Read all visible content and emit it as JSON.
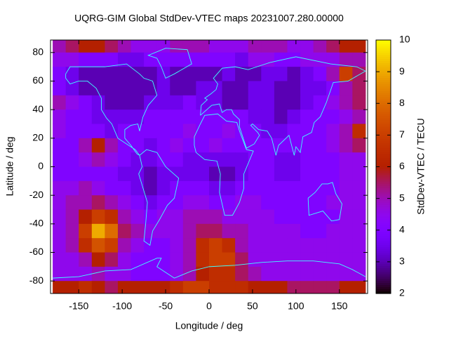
{
  "chart_data": {
    "type": "heatmap",
    "title": "UQRG-GIM Global StdDev-VTEC maps 20231007.280.00000",
    "x_label": "Longitude / deg",
    "y_label": "Latitude / deg",
    "colorbar_label": "StdDev-VTEC / TECU",
    "palette": "rgbformulae 7,5,15",
    "xlim": [
      -182.5,
      182.5
    ],
    "ylim": [
      -88.75,
      88.75
    ],
    "zlim": [
      2,
      10
    ],
    "xticks": [
      -150,
      -100,
      -50,
      0,
      50,
      100,
      150
    ],
    "yticks": [
      -80,
      -60,
      -40,
      -20,
      0,
      20,
      40,
      60,
      80
    ],
    "zticks": [
      2,
      3,
      4,
      5,
      6,
      7,
      8,
      9,
      10
    ],
    "x": [
      -172.5,
      -157.5,
      -142.5,
      -127.5,
      -112.5,
      -97.5,
      -82.5,
      -67.5,
      -52.5,
      -37.5,
      -22.5,
      -7.5,
      7.5,
      22.5,
      37.5,
      52.5,
      67.5,
      82.5,
      97.5,
      112.5,
      127.5,
      142.5,
      157.5,
      172.5
    ],
    "y": [
      85,
      75,
      65,
      55,
      45,
      35,
      25,
      15,
      5,
      -5,
      -15,
      -25,
      -35,
      -45,
      -55,
      -65,
      -75,
      -85
    ],
    "z": [
      [
        5,
        5.5,
        6,
        6,
        5.5,
        5,
        4.5,
        4.5,
        4.5,
        5,
        5,
        5,
        4.5,
        4.5,
        4.5,
        5,
        5,
        5,
        4.5,
        4.5,
        5,
        5.5,
        6,
        6
      ],
      [
        4.5,
        4.5,
        4,
        4,
        4,
        3.5,
        3.5,
        4,
        4,
        4,
        4,
        4,
        4,
        4,
        3.5,
        4.5,
        4.5,
        4,
        4,
        4.5,
        4.5,
        4.5,
        5,
        5
      ],
      [
        4,
        3.5,
        3,
        3,
        3,
        3,
        3,
        3,
        3.5,
        3,
        3,
        3,
        3,
        3.5,
        3,
        3,
        3.5,
        3.5,
        3,
        3.5,
        4,
        5,
        7,
        5.5
      ],
      [
        4,
        3.5,
        3,
        3,
        3,
        3,
        3,
        3,
        3.5,
        3,
        3,
        3.5,
        3.5,
        3,
        3,
        3.5,
        3.5,
        3,
        3,
        3.5,
        3.5,
        4,
        5,
        5.5
      ],
      [
        5,
        4.5,
        4,
        3.5,
        3,
        3,
        3,
        3.5,
        3.5,
        3.5,
        4,
        3.5,
        3.5,
        3,
        3,
        3.5,
        3.5,
        3,
        3,
        3.5,
        4,
        4.5,
        5,
        5.5
      ],
      [
        4.5,
        4,
        4,
        3.5,
        3.5,
        3.5,
        3.5,
        4,
        4,
        4,
        4,
        4,
        4,
        4,
        4,
        3.5,
        3.5,
        3,
        3.5,
        4,
        4,
        4,
        4.5,
        5
      ],
      [
        4.5,
        4,
        4,
        4,
        3.5,
        4,
        4,
        4,
        4,
        4,
        4.5,
        4,
        4,
        4.5,
        4,
        4,
        3.5,
        3.5,
        4,
        4,
        4,
        4.5,
        5,
        6.5
      ],
      [
        4,
        4,
        5,
        6,
        5,
        4,
        4,
        3.5,
        4,
        4.5,
        4,
        4,
        4.5,
        4,
        4,
        4,
        4,
        4,
        4,
        4,
        4,
        4.5,
        5,
        5.5
      ],
      [
        4,
        4,
        4.5,
        5,
        4.5,
        4,
        3.5,
        3.5,
        4,
        4,
        3.5,
        3.5,
        3.5,
        3.5,
        3.5,
        4,
        4,
        3.5,
        3.5,
        4,
        4,
        4,
        4.5,
        4.5
      ],
      [
        4,
        4,
        4,
        4,
        4,
        3.5,
        3.5,
        3,
        3.5,
        3.5,
        3.5,
        3.5,
        3,
        3,
        3.5,
        4,
        4,
        3.5,
        3.5,
        4,
        4,
        4,
        4.5,
        4.5
      ],
      [
        4.5,
        4.5,
        5,
        4.5,
        4,
        4,
        3.5,
        3,
        3.5,
        4,
        4,
        4,
        3.5,
        3.5,
        4,
        4,
        4,
        4,
        4,
        4,
        4,
        4,
        4.5,
        4.5
      ],
      [
        4.5,
        5,
        5,
        5.5,
        5,
        4.5,
        4,
        3.5,
        4,
        4,
        4.5,
        4.5,
        4,
        4,
        4.5,
        4.5,
        4,
        4,
        4,
        4,
        4,
        4.5,
        4.5,
        4.5
      ],
      [
        4.5,
        5,
        6,
        7,
        6.5,
        5,
        4.5,
        4,
        4.5,
        4.5,
        5,
        5,
        5,
        4.5,
        4.5,
        4.5,
        4.5,
        4,
        4,
        4,
        4,
        4,
        4.5,
        4.5
      ],
      [
        4.5,
        5,
        7,
        9,
        8,
        5.5,
        5,
        4.5,
        4.5,
        4.5,
        5,
        5.5,
        5.5,
        5,
        5,
        4.5,
        4.5,
        4.5,
        4.5,
        4,
        4,
        4.5,
        4.5,
        4.5
      ],
      [
        4.5,
        5,
        6.5,
        7.5,
        7,
        5,
        4.5,
        4,
        4,
        4.5,
        5,
        6.5,
        7,
        6.5,
        5,
        4.5,
        4.5,
        4.5,
        4.5,
        4.5,
        4.5,
        4.5,
        4.5,
        4.5
      ],
      [
        4.5,
        4.5,
        5,
        6,
        5.5,
        4.5,
        4,
        4,
        4,
        4.5,
        5,
        6.5,
        7,
        7,
        5.5,
        4.5,
        4.5,
        4.5,
        4.5,
        4.5,
        4.5,
        4.5,
        4.5,
        4.5
      ],
      [
        4.5,
        4.5,
        4.5,
        5,
        4.5,
        4.5,
        4,
        4,
        4,
        4.5,
        5,
        6,
        6.5,
        6.5,
        5.5,
        5,
        4.5,
        4.5,
        4.5,
        4.5,
        4.5,
        4.5,
        4.5,
        4.5
      ],
      [
        6,
        6,
        6.5,
        6,
        5.5,
        6,
        6,
        6,
        6,
        6.5,
        7,
        7,
        6.5,
        6.5,
        6.5,
        6,
        6,
        6,
        5.5,
        5.5,
        5.5,
        5.5,
        6,
        6
      ]
    ]
  }
}
